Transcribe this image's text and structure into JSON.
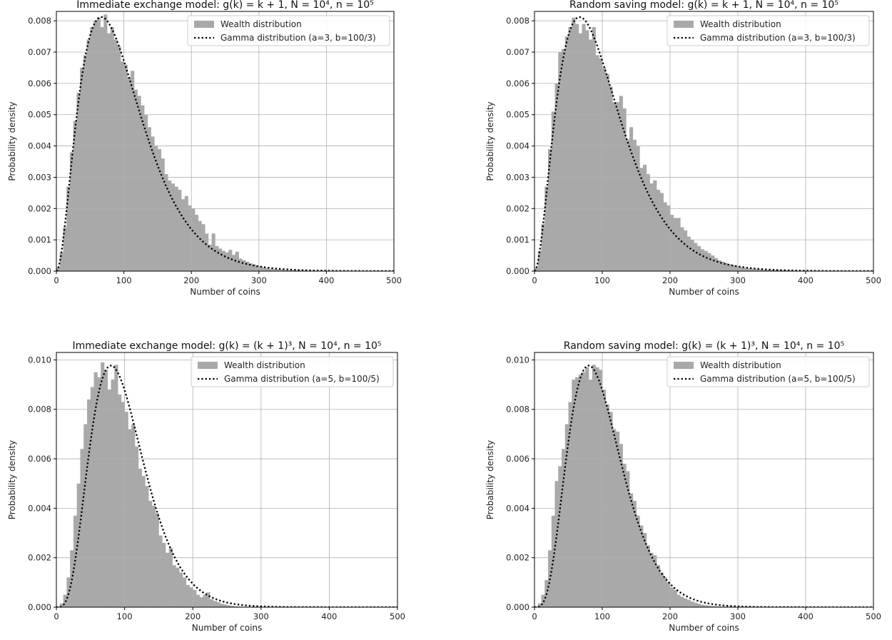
{
  "chart_data": [
    {
      "type": "histogram",
      "title": "Immediate exchange model: g(k) = k + 1, N = 10⁴, n = 10⁵",
      "xlabel": "Number of coins",
      "ylabel": "Probability density",
      "xlim": [
        0,
        500
      ],
      "ylim": [
        0,
        0.0083
      ],
      "xticks": [
        0,
        100,
        200,
        300,
        400,
        500
      ],
      "yticks": [
        0.0,
        0.001,
        0.002,
        0.003,
        0.004,
        0.005,
        0.006,
        0.007,
        0.008
      ],
      "ytick_decimals": 3,
      "grid": true,
      "legend_position": "upper right",
      "series": [
        {
          "name": "Wealth distribution",
          "kind": "histogram",
          "color": "#a9a9a9",
          "bin_width": 5,
          "bin_starts": [
            0,
            5,
            10,
            15,
            20,
            25,
            30,
            35,
            40,
            45,
            50,
            55,
            60,
            65,
            70,
            75,
            80,
            85,
            90,
            95,
            100,
            105,
            110,
            115,
            120,
            125,
            130,
            135,
            140,
            145,
            150,
            155,
            160,
            165,
            170,
            175,
            180,
            185,
            190,
            195,
            200,
            205,
            210,
            215,
            220,
            225,
            230,
            235,
            240,
            245,
            250,
            255,
            260,
            265,
            270,
            275,
            280,
            285,
            290,
            295,
            300,
            305,
            310,
            315,
            320,
            325,
            330,
            335,
            340,
            345,
            350,
            355,
            360,
            365,
            370,
            375,
            380,
            385,
            390,
            395,
            400,
            405,
            410,
            415,
            420,
            425,
            430,
            435,
            440,
            445,
            450,
            455
          ],
          "values": [
            0.00012,
            0.0006,
            0.0014,
            0.0027,
            0.0038,
            0.0048,
            0.0057,
            0.0065,
            0.0069,
            0.0074,
            0.0078,
            0.008,
            0.0081,
            0.0078,
            0.0082,
            0.0076,
            0.0078,
            0.0074,
            0.0072,
            0.0067,
            0.0066,
            0.0062,
            0.0064,
            0.0058,
            0.0056,
            0.0053,
            0.005,
            0.0046,
            0.0043,
            0.004,
            0.0039,
            0.0036,
            0.0031,
            0.0029,
            0.0028,
            0.0027,
            0.0026,
            0.0023,
            0.0024,
            0.0021,
            0.002,
            0.0018,
            0.0016,
            0.0015,
            0.0012,
            0.00085,
            0.0012,
            0.0008,
            0.00072,
            0.00065,
            0.0006,
            0.00068,
            0.00052,
            0.00062,
            0.0004,
            0.00035,
            0.0003,
            0.00025,
            0.00022,
            0.00018,
            0.00015,
            0.00012,
            0.0001,
            8e-05,
            7e-05,
            6e-05,
            5e-05,
            4e-05,
            3e-05,
            3e-05,
            2e-05,
            2e-05,
            2e-05,
            2e-05,
            1e-05,
            1e-05,
            1e-05,
            1e-05,
            1e-05,
            1e-05,
            1e-05,
            1e-05,
            1e-05,
            1e-05,
            1e-05,
            1e-05,
            1e-05,
            1e-05,
            1e-05,
            1e-05,
            1e-05,
            1e-05
          ]
        },
        {
          "name": "Gamma distribution (a=3, b=100/3)",
          "kind": "gamma",
          "shape": 3,
          "scale": 33.3333,
          "line_style": "dotted",
          "color": "#000000",
          "x_range": [
            0,
            500
          ]
        }
      ]
    },
    {
      "type": "histogram",
      "title": "Random saving model: g(k) = k + 1, N = 10⁴, n = 10⁵",
      "xlabel": "Number of coins",
      "ylabel": "Probability density",
      "xlim": [
        0,
        500
      ],
      "ylim": [
        0,
        0.0083
      ],
      "xticks": [
        0,
        100,
        200,
        300,
        400,
        500
      ],
      "yticks": [
        0.0,
        0.001,
        0.002,
        0.003,
        0.004,
        0.005,
        0.006,
        0.007,
        0.008
      ],
      "ytick_decimals": 3,
      "grid": true,
      "legend_position": "upper right",
      "series": [
        {
          "name": "Wealth distribution",
          "kind": "histogram",
          "color": "#a9a9a9",
          "bin_width": 5,
          "bin_starts": [
            0,
            5,
            10,
            15,
            20,
            25,
            30,
            35,
            40,
            45,
            50,
            55,
            60,
            65,
            70,
            75,
            80,
            85,
            90,
            95,
            100,
            105,
            110,
            115,
            120,
            125,
            130,
            135,
            140,
            145,
            150,
            155,
            160,
            165,
            170,
            175,
            180,
            185,
            190,
            195,
            200,
            205,
            210,
            215,
            220,
            225,
            230,
            235,
            240,
            245,
            250,
            255,
            260,
            265,
            270,
            275,
            280,
            285,
            290,
            295,
            300,
            305,
            310,
            315,
            320,
            325,
            330,
            335,
            340,
            345,
            350,
            355,
            360,
            365,
            370,
            375,
            380,
            385,
            390,
            395,
            400,
            405,
            410,
            415,
            420,
            425,
            430,
            435,
            440,
            445,
            450,
            455,
            460,
            465,
            470,
            475,
            480,
            485,
            490,
            495
          ],
          "values": [
            0.0001,
            0.00065,
            0.0015,
            0.0027,
            0.0039,
            0.0051,
            0.006,
            0.007,
            0.0071,
            0.0075,
            0.0078,
            0.0081,
            0.0079,
            0.0076,
            0.0079,
            0.0077,
            0.0074,
            0.0078,
            0.0069,
            0.0068,
            0.0065,
            0.0063,
            0.0059,
            0.0054,
            0.0054,
            0.0056,
            0.0052,
            0.0042,
            0.0046,
            0.0042,
            0.004,
            0.0033,
            0.0034,
            0.0031,
            0.0028,
            0.0029,
            0.0026,
            0.0025,
            0.0022,
            0.0021,
            0.0018,
            0.0017,
            0.0017,
            0.0014,
            0.0013,
            0.0011,
            0.001,
            0.0009,
            0.0008,
            0.0007,
            0.00065,
            0.00058,
            0.0005,
            0.00042,
            0.00035,
            0.0003,
            0.00026,
            0.00022,
            0.0002,
            0.00017,
            0.00014,
            0.00012,
            0.0001,
            9e-05,
            8e-05,
            7e-05,
            6e-05,
            5e-05,
            4e-05,
            4e-05,
            3e-05,
            3e-05,
            2e-05,
            2e-05,
            2e-05,
            2e-05,
            1e-05,
            1e-05,
            1e-05,
            1e-05,
            1e-05,
            1e-05,
            1e-05,
            1e-05,
            1e-05,
            1e-05,
            1e-05,
            1e-05,
            1e-05,
            1e-05,
            1e-05,
            1e-05,
            1e-05,
            1e-05,
            1e-05,
            1e-05,
            1e-05,
            1e-05,
            1e-05,
            1e-05
          ]
        },
        {
          "name": "Gamma distribution (a=3, b=100/3)",
          "kind": "gamma",
          "shape": 3,
          "scale": 33.3333,
          "line_style": "dotted",
          "color": "#000000",
          "x_range": [
            0,
            500
          ]
        }
      ]
    },
    {
      "type": "histogram",
      "title": "Immediate exchange model: g(k) = (k + 1)³, N = 10⁴, n = 10⁵",
      "xlabel": "Number of coins",
      "ylabel": "Probability density",
      "xlim": [
        0,
        500
      ],
      "ylim": [
        0,
        0.0103
      ],
      "xticks": [
        0,
        100,
        200,
        300,
        400,
        500
      ],
      "yticks": [
        0.0,
        0.002,
        0.004,
        0.006,
        0.008,
        0.01
      ],
      "ytick_decimals": 3,
      "grid": true,
      "legend_position": "upper right",
      "series": [
        {
          "name": "Wealth distribution",
          "kind": "histogram",
          "color": "#a9a9a9",
          "bin_width": 5,
          "bin_starts": [
            0,
            5,
            10,
            15,
            20,
            25,
            30,
            35,
            40,
            45,
            50,
            55,
            60,
            65,
            70,
            75,
            80,
            85,
            90,
            95,
            100,
            105,
            110,
            115,
            120,
            125,
            130,
            135,
            140,
            145,
            150,
            155,
            160,
            165,
            170,
            175,
            180,
            185,
            190,
            195,
            200,
            205,
            210,
            215,
            220,
            225,
            230,
            235,
            240,
            245,
            250,
            255,
            260,
            265,
            270,
            275,
            280,
            285,
            290,
            295,
            300,
            305,
            310,
            315,
            320,
            325,
            330,
            335,
            340,
            345,
            350,
            355,
            360
          ],
          "values": [
            2e-05,
            0.00015,
            0.0005,
            0.0012,
            0.0023,
            0.0037,
            0.005,
            0.0064,
            0.0074,
            0.0084,
            0.0089,
            0.0095,
            0.0093,
            0.0099,
            0.0096,
            0.0088,
            0.0092,
            0.0098,
            0.0086,
            0.0083,
            0.0079,
            0.0072,
            0.0074,
            0.0065,
            0.0056,
            0.0053,
            0.0049,
            0.0043,
            0.0041,
            0.0038,
            0.0029,
            0.0026,
            0.0022,
            0.0024,
            0.0017,
            0.0016,
            0.0014,
            0.0012,
            0.0009,
            0.0008,
            0.0007,
            0.0005,
            0.0004,
            0.0005,
            0.0006,
            0.00032,
            0.00025,
            0.0002,
            0.00014,
            0.00011,
            8e-05,
            6e-05,
            4e-05,
            3e-05,
            2e-05,
            2e-05,
            1e-05,
            1e-05,
            1e-05,
            1e-05,
            1e-05,
            1e-05,
            1e-05,
            1e-05,
            1e-05,
            1e-05,
            1e-05,
            1e-05,
            1e-05,
            1e-05,
            1e-05,
            1e-05,
            1e-05
          ]
        },
        {
          "name": "Gamma distribution (a=5, b=100/5)",
          "kind": "gamma",
          "shape": 5,
          "scale": 20,
          "line_style": "dotted",
          "color": "#000000",
          "x_range": [
            0,
            500
          ]
        }
      ]
    },
    {
      "type": "histogram",
      "title": "Random saving model: g(k) = (k + 1)³, N = 10⁴, n = 10⁵",
      "xlabel": "Number of coins",
      "ylabel": "Probability density",
      "xlim": [
        0,
        500
      ],
      "ylim": [
        0,
        0.0103
      ],
      "xticks": [
        0,
        100,
        200,
        300,
        400,
        500
      ],
      "yticks": [
        0.0,
        0.002,
        0.004,
        0.006,
        0.008,
        0.01
      ],
      "ytick_decimals": 3,
      "grid": true,
      "legend_position": "upper right",
      "series": [
        {
          "name": "Wealth distribution",
          "kind": "histogram",
          "color": "#a9a9a9",
          "bin_width": 5,
          "bin_starts": [
            0,
            5,
            10,
            15,
            20,
            25,
            30,
            35,
            40,
            45,
            50,
            55,
            60,
            65,
            70,
            75,
            80,
            85,
            90,
            95,
            100,
            105,
            110,
            115,
            120,
            125,
            130,
            135,
            140,
            145,
            150,
            155,
            160,
            165,
            170,
            175,
            180,
            185,
            190,
            195,
            200,
            205,
            210,
            215,
            220,
            225,
            230,
            235,
            240,
            245,
            250,
            255,
            260,
            265,
            270,
            275,
            280,
            285,
            290,
            295,
            300,
            305,
            310,
            315,
            320,
            325,
            330,
            335,
            340,
            345,
            350,
            355
          ],
          "values": [
            2e-05,
            0.00015,
            0.0005,
            0.0011,
            0.0023,
            0.0037,
            0.0051,
            0.0057,
            0.0064,
            0.0074,
            0.0083,
            0.0092,
            0.0093,
            0.0094,
            0.0095,
            0.0097,
            0.0092,
            0.0098,
            0.0097,
            0.0096,
            0.0088,
            0.0082,
            0.0079,
            0.0072,
            0.0071,
            0.0066,
            0.0058,
            0.0055,
            0.0046,
            0.0043,
            0.0037,
            0.0033,
            0.003,
            0.0025,
            0.0022,
            0.0021,
            0.0017,
            0.0014,
            0.0012,
            0.001,
            0.0008,
            0.0007,
            0.0005,
            0.00042,
            0.00035,
            0.0003,
            0.00023,
            0.00018,
            0.00014,
            0.0001,
            8e-05,
            6e-05,
            5e-05,
            4e-05,
            3e-05,
            2e-05,
            2e-05,
            1e-05,
            1e-05,
            1e-05,
            1e-05,
            1e-05,
            1e-05,
            1e-05,
            1e-05,
            1e-05,
            1e-05,
            1e-05,
            1e-05,
            1e-05,
            1e-05,
            1e-05
          ]
        },
        {
          "name": "Gamma distribution (a=5, b=100/5)",
          "kind": "gamma",
          "shape": 5,
          "scale": 20,
          "line_style": "dotted",
          "color": "#000000",
          "x_range": [
            0,
            500
          ]
        }
      ]
    }
  ]
}
